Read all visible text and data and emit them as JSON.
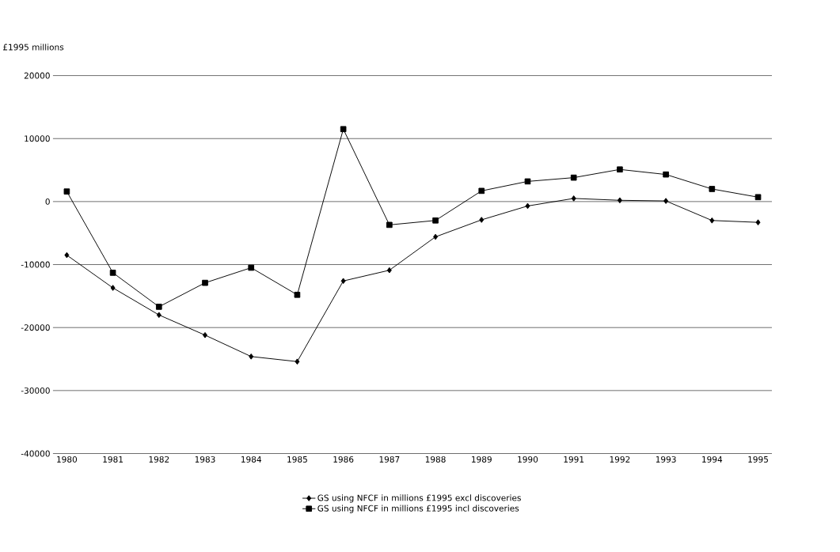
{
  "chart_data": {
    "type": "line",
    "ylabel": "£1995 millions",
    "categories": [
      "1980",
      "1981",
      "1982",
      "1983",
      "1984",
      "1985",
      "1986",
      "1987",
      "1988",
      "1989",
      "1990",
      "1991",
      "1992",
      "1993",
      "1994",
      "1995"
    ],
    "series": [
      {
        "name": "GS using NFCF in millions £1995 excl discoveries",
        "color": "#000000",
        "marker": "diamond",
        "values": [
          -8500,
          -13700,
          -18000,
          -21200,
          -24600,
          -25400,
          -12600,
          -10900,
          -5600,
          -2900,
          -700,
          500,
          200,
          100,
          -3000,
          -3300
        ]
      },
      {
        "name": "GS using NFCF in millions £1995 incl discoveries",
        "color": "#000000",
        "marker": "square",
        "values": [
          1600,
          -11300,
          -16700,
          -12900,
          -10500,
          -14800,
          11500,
          -3700,
          -3000,
          1700,
          3200,
          3800,
          5100,
          4300,
          2000,
          700
        ]
      }
    ],
    "ylim": [
      -40000,
      20000
    ],
    "yticks": [
      -40000,
      -30000,
      -20000,
      -10000,
      0,
      10000,
      20000
    ],
    "grid": "y",
    "legend": "bottom"
  }
}
